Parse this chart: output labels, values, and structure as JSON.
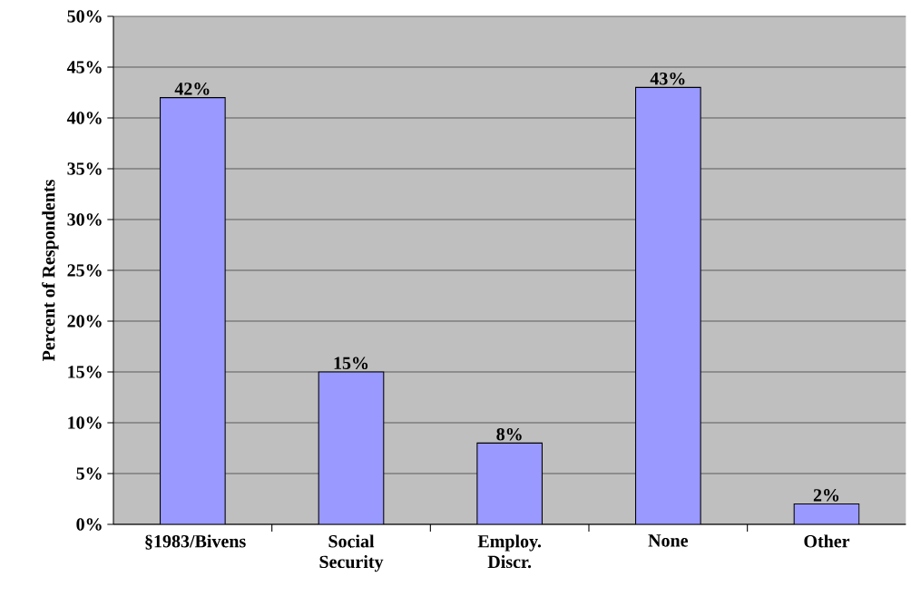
{
  "chart_data": {
    "type": "bar",
    "ylabel": "Percent of Respondents",
    "categories": [
      "§1983/Bivens",
      "Social Security",
      "Employ. Discr.",
      "None",
      "Other"
    ],
    "values": [
      42,
      15,
      8,
      43,
      2
    ],
    "value_labels": [
      "42%",
      "15%",
      "8%",
      "43%",
      "2%"
    ],
    "color": "#9999ff",
    "ylim": [
      0,
      50
    ],
    "yticks": [
      {
        "value": 0,
        "label": "0%"
      },
      {
        "value": 5,
        "label": "5%"
      },
      {
        "value": 10,
        "label": "10%"
      },
      {
        "value": 15,
        "label": "15%"
      },
      {
        "value": 20,
        "label": "20%"
      },
      {
        "value": 25,
        "label": "25%"
      },
      {
        "value": 30,
        "label": "30%"
      },
      {
        "value": 35,
        "label": "35%"
      },
      {
        "value": 40,
        "label": "40%"
      },
      {
        "value": 45,
        "label": "45%"
      },
      {
        "value": 50,
        "label": "50%"
      }
    ],
    "grid": "y"
  }
}
